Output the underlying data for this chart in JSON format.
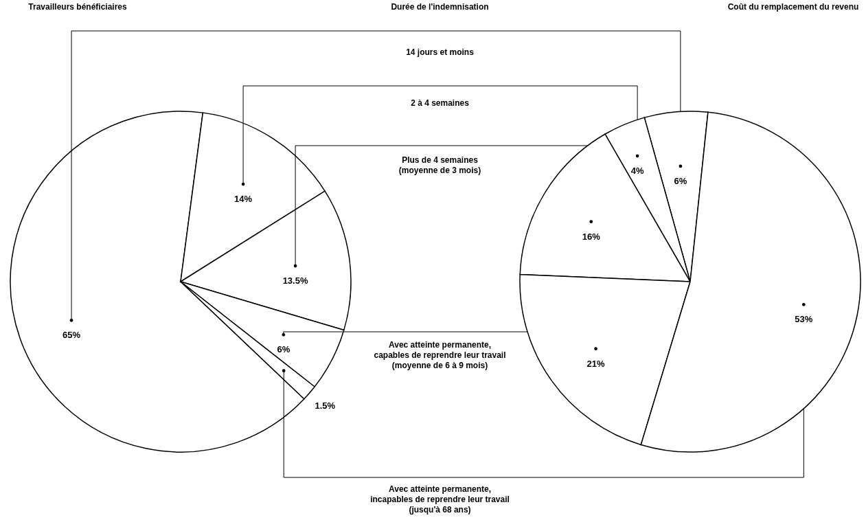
{
  "chart_data": [
    {
      "type": "pie",
      "title": "Travailleurs bénéficiaires",
      "categories": [
        null,
        null,
        null,
        null,
        null
      ],
      "values": [
        65,
        14,
        13.5,
        6,
        1.5
      ],
      "value_labels": [
        "65%",
        "14%",
        "13.5%",
        "6%",
        "1.5%"
      ],
      "colors": [
        "#ffffff",
        "#ffffff",
        "#ffffff",
        "#ffffff",
        "#ffffff"
      ]
    },
    {
      "type": "other",
      "title": "Durée de l'indemnisation",
      "annotations": [
        "14 jours et moins",
        "2 à 4 semaines",
        "Plus de 4 semaines\n(moyenne de 3 mois)",
        "Avec atteinte permanente,\ncapables de reprendre leur travail\n(moyenne de 6 à 9 mois)",
        "Avec atteinte permanente,\nincapables de reprendre leur travail\n(jusqu'à 68 ans)"
      ]
    },
    {
      "type": "pie",
      "title": "Coût du remplacement du revenu",
      "categories": [
        null,
        null,
        null,
        null,
        null
      ],
      "values": [
        6,
        4,
        16,
        21,
        53
      ],
      "value_labels": [
        "6%",
        "4%",
        "16%",
        "21%",
        "53%"
      ],
      "colors": [
        "#ffffff",
        "#ffffff",
        "#ffffff",
        "#ffffff",
        "#ffffff"
      ]
    }
  ]
}
